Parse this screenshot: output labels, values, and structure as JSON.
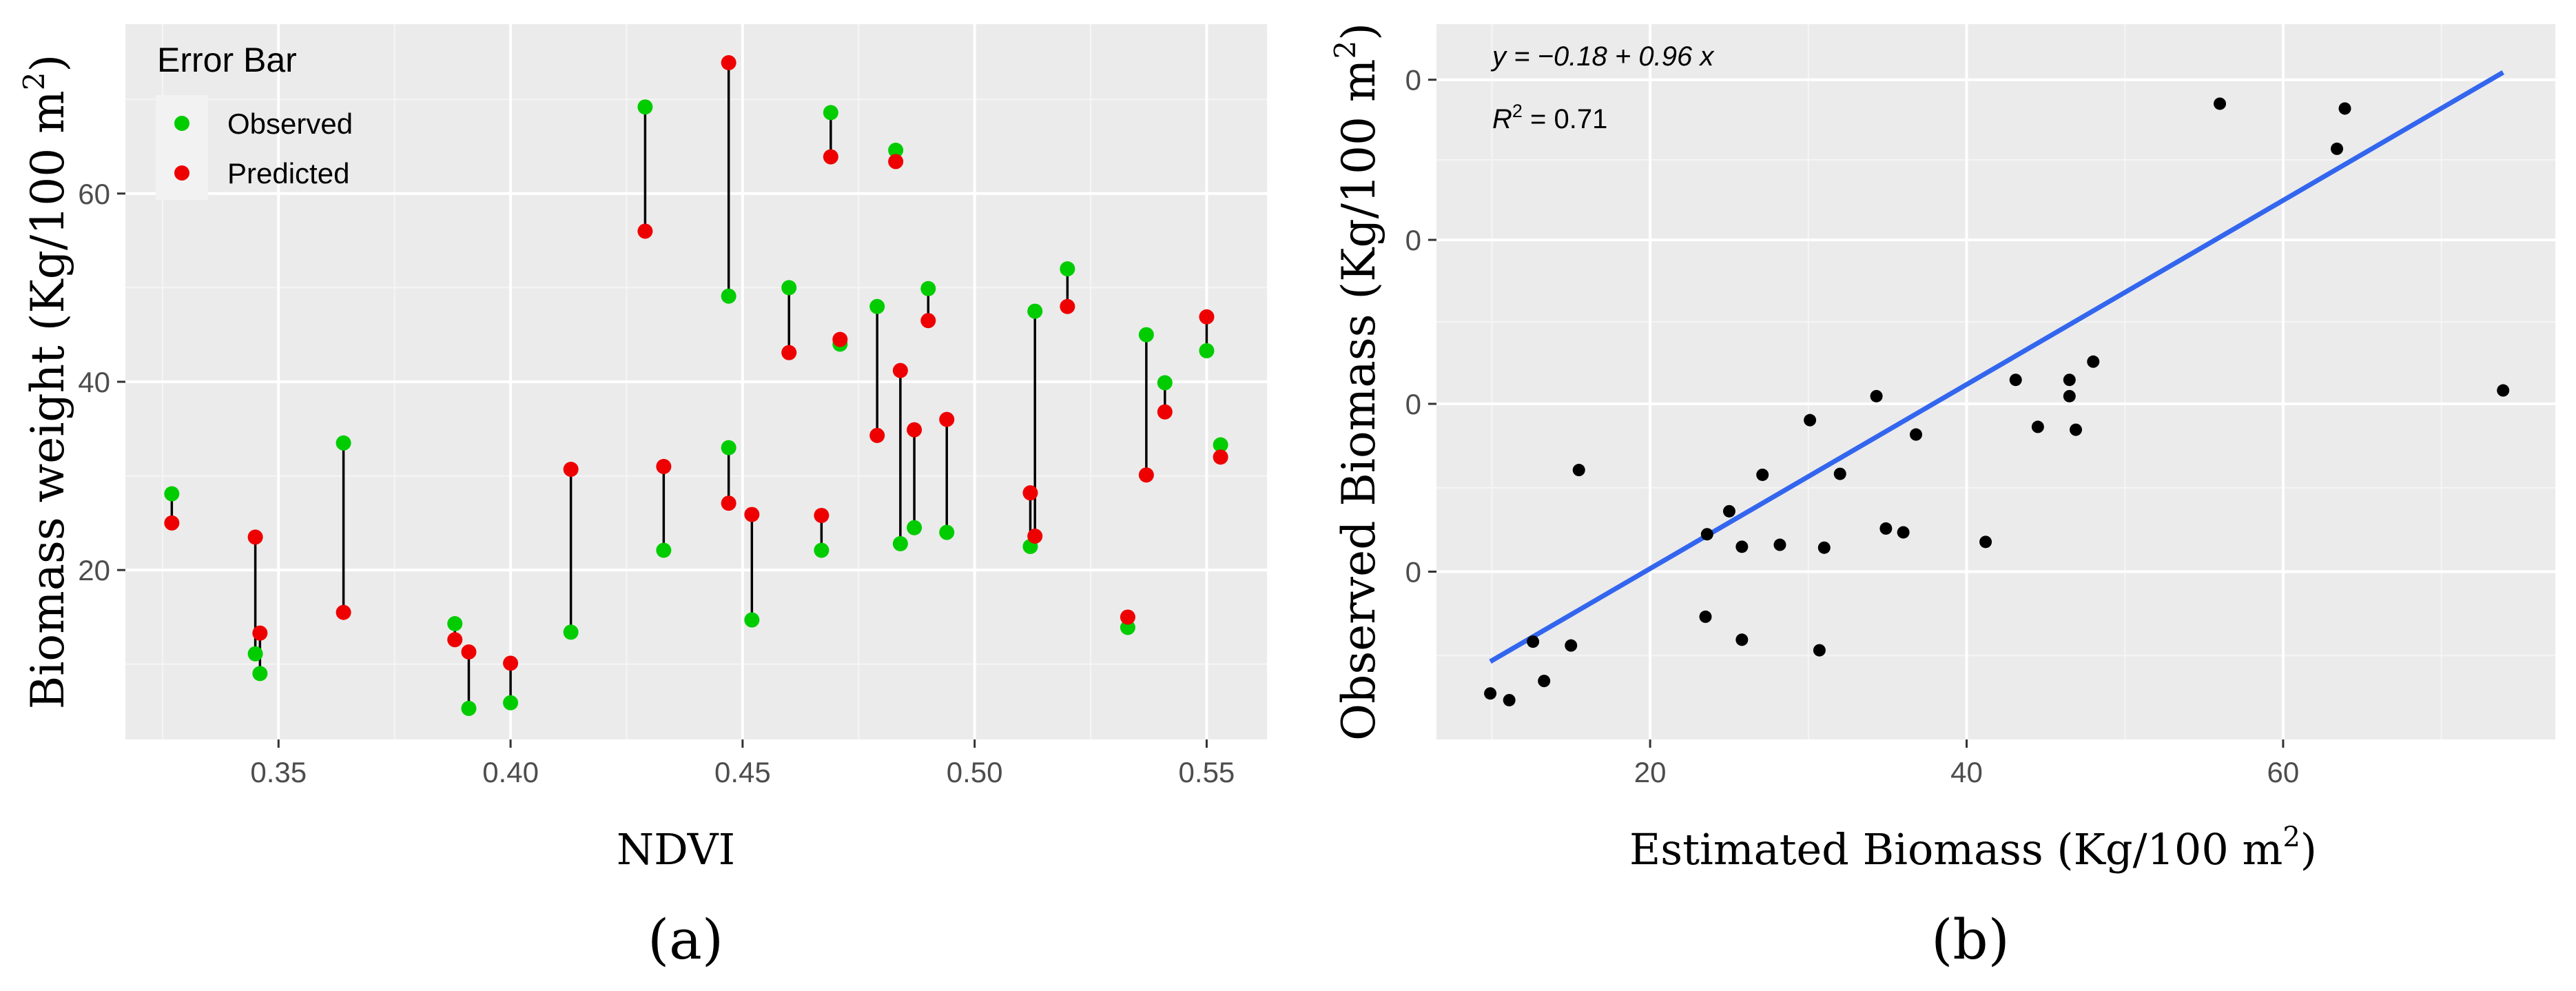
{
  "chart_data": [
    {
      "type": "scatter",
      "panel_caption": "(a)",
      "xlabel": "NDVI",
      "ylabel": "Biomass weight (Kg/100 m2)",
      "ylabel_base": "Biomass weight (Kg/100 m",
      "ylabel_sup": "2",
      "ylabel_close": ")",
      "xlim": [
        0.317,
        0.563
      ],
      "ylim": [
        2,
        78
      ],
      "x_ticks": [
        0.35,
        0.4,
        0.45,
        0.5,
        0.55
      ],
      "x_tick_labels": [
        "0.35",
        "0.40",
        "0.45",
        "0.50",
        "0.55"
      ],
      "y_ticks": [
        20,
        40,
        60
      ],
      "y_tick_labels": [
        "20",
        "40",
        "60"
      ],
      "legend": {
        "title": "Error Bar",
        "position": "top-left",
        "entries": [
          {
            "label": "Observed",
            "color": "#00cc00"
          },
          {
            "label": "Predicted",
            "color": "#ee0000"
          }
        ]
      },
      "series": [
        {
          "name": "Observed",
          "color": "#00cc00",
          "points": [
            [
              0.327,
              28.1
            ],
            [
              0.345,
              11.1
            ],
            [
              0.346,
              9.0
            ],
            [
              0.364,
              33.5
            ],
            [
              0.388,
              14.3
            ],
            [
              0.391,
              5.3
            ],
            [
              0.4,
              5.9
            ],
            [
              0.413,
              13.4
            ],
            [
              0.429,
              69.2
            ],
            [
              0.433,
              22.1
            ],
            [
              0.447,
              49.1
            ],
            [
              0.447,
              33.0
            ],
            [
              0.452,
              14.7
            ],
            [
              0.46,
              50.0
            ],
            [
              0.467,
              22.1
            ],
            [
              0.469,
              68.6
            ],
            [
              0.471,
              44.0
            ],
            [
              0.479,
              48.0
            ],
            [
              0.483,
              64.6
            ],
            [
              0.484,
              22.8
            ],
            [
              0.487,
              24.5
            ],
            [
              0.49,
              49.9
            ],
            [
              0.494,
              24.0
            ],
            [
              0.512,
              22.5
            ],
            [
              0.513,
              47.5
            ],
            [
              0.52,
              52.0
            ],
            [
              0.533,
              13.9
            ],
            [
              0.537,
              45.0
            ],
            [
              0.541,
              39.9
            ],
            [
              0.55,
              43.3
            ],
            [
              0.553,
              33.3
            ]
          ]
        },
        {
          "name": "Predicted",
          "color": "#ee0000",
          "points": [
            [
              0.327,
              25.0
            ],
            [
              0.345,
              23.5
            ],
            [
              0.346,
              13.3
            ],
            [
              0.364,
              15.5
            ],
            [
              0.388,
              12.6
            ],
            [
              0.391,
              11.3
            ],
            [
              0.4,
              10.1
            ],
            [
              0.413,
              30.7
            ],
            [
              0.429,
              56.0
            ],
            [
              0.433,
              31.0
            ],
            [
              0.447,
              73.9
            ],
            [
              0.447,
              27.1
            ],
            [
              0.452,
              25.9
            ],
            [
              0.46,
              43.1
            ],
            [
              0.467,
              25.8
            ],
            [
              0.469,
              63.9
            ],
            [
              0.471,
              44.5
            ],
            [
              0.479,
              34.3
            ],
            [
              0.483,
              63.4
            ],
            [
              0.484,
              41.2
            ],
            [
              0.487,
              34.9
            ],
            [
              0.49,
              46.5
            ],
            [
              0.494,
              36.0
            ],
            [
              0.512,
              28.2
            ],
            [
              0.513,
              23.6
            ],
            [
              0.52,
              48.0
            ],
            [
              0.533,
              15.0
            ],
            [
              0.537,
              30.1
            ],
            [
              0.541,
              36.8
            ],
            [
              0.55,
              46.9
            ],
            [
              0.553,
              32.0
            ]
          ]
        }
      ],
      "error_bars": "vertical line between observed and predicted at each NDVI"
    },
    {
      "type": "scatter",
      "panel_caption": "(b)",
      "xlabel": "Estimated Biomass (Kg/100 m2)",
      "xlabel_base": "Estimated Biomass (Kg/100 m",
      "xlabel_sup": "2",
      "xlabel_close": ")",
      "ylabel": "Observed Biomass (Kg/100 m2)",
      "ylabel_base": "Observed Biomass (Kg/100 m",
      "ylabel_sup": "2",
      "ylabel_close": ")",
      "xlim": [
        6.5,
        77.2
      ],
      "ylim": [
        1.2,
        75.8
      ],
      "x_ticks": [
        20,
        40,
        60
      ],
      "x_tick_labels": [
        "20",
        "40",
        "60"
      ],
      "y_ticks": [
        18.7,
        36.2,
        53.3,
        70.0
      ],
      "y_tick_labels": [
        "0",
        "0",
        "0",
        "0"
      ],
      "annotations": {
        "equation": "y = −0.18 + 0.96 x",
        "r2_label": "R",
        "r2_sup": "2",
        "r2_value": " = 0.71"
      },
      "fit_line": {
        "color": "#3366ee",
        "intercept": -0.18,
        "slope": 0.96,
        "x_range": [
          9.9,
          73.9
        ]
      },
      "points_color": "#000000",
      "points": [
        [
          9.9,
          6.0
        ],
        [
          11.1,
          5.3
        ],
        [
          12.6,
          11.4
        ],
        [
          13.3,
          7.3
        ],
        [
          15.0,
          11.0
        ],
        [
          15.5,
          29.3
        ],
        [
          23.5,
          14.0
        ],
        [
          23.6,
          22.6
        ],
        [
          25.0,
          25.0
        ],
        [
          25.8,
          11.6
        ],
        [
          25.8,
          21.3
        ],
        [
          27.1,
          28.8
        ],
        [
          28.2,
          21.5
        ],
        [
          30.1,
          34.5
        ],
        [
          30.7,
          10.5
        ],
        [
          31.0,
          21.2
        ],
        [
          32.0,
          28.9
        ],
        [
          34.3,
          37.0
        ],
        [
          34.9,
          23.2
        ],
        [
          36.0,
          22.8
        ],
        [
          36.8,
          33.0
        ],
        [
          41.2,
          21.8
        ],
        [
          43.1,
          38.7
        ],
        [
          44.5,
          33.8
        ],
        [
          46.5,
          37.0
        ],
        [
          46.5,
          38.7
        ],
        [
          46.9,
          33.5
        ],
        [
          48.0,
          40.6
        ],
        [
          56.0,
          67.5
        ],
        [
          63.4,
          62.8
        ],
        [
          63.9,
          67.0
        ],
        [
          73.9,
          37.6
        ]
      ]
    }
  ]
}
